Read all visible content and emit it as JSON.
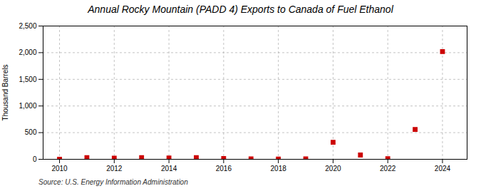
{
  "chart_data": {
    "type": "scatter",
    "title": "Annual Rocky Mountain (PADD 4) Exports to Canada of Fuel Ethanol",
    "ylabel": "Thousand Barrels",
    "annotations": [
      "Source: U.S. Energy Information Administration"
    ],
    "x": [
      2010,
      2011,
      2012,
      2013,
      2014,
      2015,
      2016,
      2017,
      2018,
      2019,
      2020,
      2021,
      2022,
      2023,
      2024
    ],
    "values": [
      0,
      30,
      20,
      30,
      25,
      32,
      15,
      8,
      5,
      8,
      320,
      80,
      10,
      560,
      2020
    ],
    "color": "#cc0000",
    "marker": "square",
    "xlim": [
      2009.4,
      2024.9
    ],
    "xticks": [
      2010,
      2012,
      2014,
      2016,
      2018,
      2020,
      2022,
      2024
    ],
    "ylim": [
      0,
      2500
    ],
    "yticks": [
      0,
      500,
      {
        "value": 1000,
        "label": "1,000"
      },
      {
        "value": 1500,
        "label": "1,500"
      },
      {
        "value": 2000,
        "label": "2,000"
      },
      {
        "value": 2500,
        "label": "2,500"
      }
    ],
    "grid": true
  }
}
